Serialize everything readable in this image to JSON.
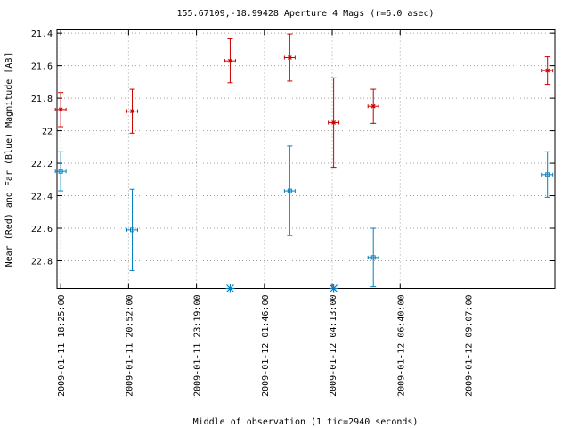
{
  "chart_data": {
    "type": "scatter",
    "title": "155.67109,-18.99428   Aperture 4 Mags (r=6.0 asec)",
    "xlabel": "Middle of observation (1 tic=2940 seconds)",
    "ylabel": "Near (Red) and Far (Blue) Magnitude [AB]",
    "y_inverted": true,
    "ylim": [
      21.38,
      22.97
    ],
    "xlim": [
      "2009-01-11 18:17:00",
      "2009-01-12 12:15:00"
    ],
    "x_tick_labels": [
      "2009-01-11 18:25:00",
      "2009-01-11 20:52:00",
      "2009-01-11 23:19:00",
      "2009-01-12 01:46:00",
      "2009-01-12 04:13:00",
      "2009-01-12 06:40:00",
      "2009-01-12 09:07:00"
    ],
    "y_ticks": [
      21.4,
      21.6,
      21.8,
      22,
      22.2,
      22.4,
      22.6,
      22.8
    ],
    "y_tick_labels": [
      "21.4",
      "21.6",
      "21.8",
      "22",
      "22.2",
      "22.4",
      "22.6",
      "22.8"
    ],
    "grid": true,
    "series": [
      {
        "color": "#cc0000",
        "points": [
          {
            "x": "2009-01-11 18:25:00",
            "y": 21.87,
            "yerr": 0.105
          },
          {
            "x": "2009-01-11 21:00:00",
            "y": 21.88,
            "yerr": 0.135
          },
          {
            "x": "2009-01-12 00:32:00",
            "y": 21.57,
            "yerr": 0.135
          },
          {
            "x": "2009-01-12 02:41:00",
            "y": 21.55,
            "yerr": 0.145
          },
          {
            "x": "2009-01-12 04:16:00",
            "y": 21.95,
            "yerr": 0.275
          },
          {
            "x": "2009-01-12 05:42:00",
            "y": 21.85,
            "yerr": 0.105
          },
          {
            "x": "2009-01-12 11:59:00",
            "y": 21.63,
            "yerr": 0.085
          }
        ]
      },
      {
        "color": "#0080c0",
        "points": [
          {
            "x": "2009-01-11 18:25:00",
            "y": 22.25,
            "yerr": 0.12
          },
          {
            "x": "2009-01-11 21:00:00",
            "y": 22.61,
            "yerr": 0.25
          },
          {
            "x": "2009-01-12 02:41:00",
            "y": 22.37,
            "yerr": 0.275
          },
          {
            "x": "2009-01-12 05:42:00",
            "y": 22.78,
            "yerr": 0.18
          },
          {
            "x": "2009-01-12 11:59:00",
            "y": 22.27,
            "yerr": 0.14
          }
        ]
      }
    ],
    "limit_markers": {
      "color": "#0080c0",
      "symbol": "asterisk",
      "x": [
        "2009-01-12 00:32:00",
        "2009-01-12 04:16:00"
      ]
    }
  }
}
